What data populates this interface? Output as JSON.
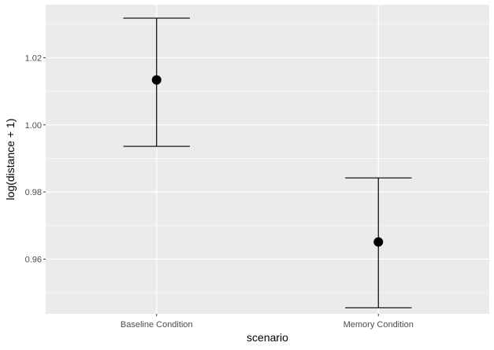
{
  "chart_data": {
    "type": "errorbar",
    "xlabel": "scenario",
    "ylabel": "log(distance + 1)",
    "categories": [
      "Baseline Condition",
      "Memory Condition"
    ],
    "points": [
      {
        "category": "Baseline Condition",
        "mean": 1.0134,
        "lower": 0.9936,
        "upper": 1.0318
      },
      {
        "category": "Memory Condition",
        "mean": 0.9651,
        "lower": 0.9455,
        "upper": 0.9842
      }
    ],
    "ylim": [
      0.9437,
      1.0358
    ],
    "yticks": [
      0.96,
      0.98,
      1.0,
      1.02
    ],
    "ytick_labels": [
      "0.96",
      "0.98",
      "1.00",
      "1.02"
    ],
    "grid": true,
    "colors": {
      "panel": "#ebebeb",
      "grid": "#ffffff",
      "mark": "#000000"
    }
  }
}
